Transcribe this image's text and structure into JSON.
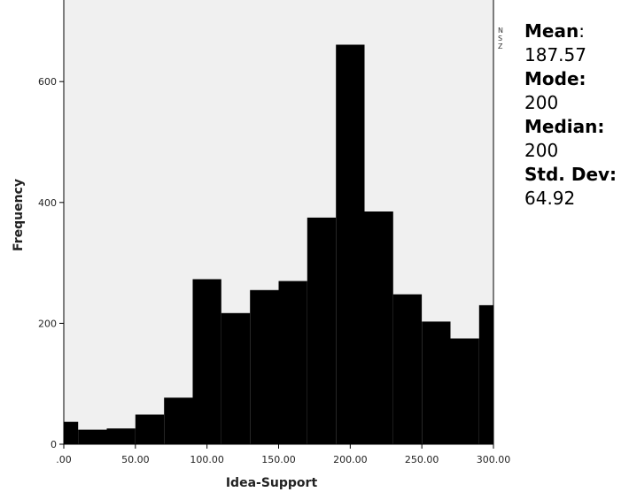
{
  "chart_data": {
    "type": "bar",
    "subtype": "histogram",
    "xlabel": "Idea-Support",
    "ylabel": "Frequency",
    "xlim": [
      0,
      300
    ],
    "ylim": [
      0,
      735
    ],
    "x_ticks": [
      0,
      50,
      100,
      150,
      200,
      250,
      300
    ],
    "x_tick_labels": [
      ".00",
      "50.00",
      "100.00",
      "150.00",
      "200.00",
      "250.00",
      "300.00"
    ],
    "y_ticks": [
      0,
      200,
      400,
      600
    ],
    "y_tick_labels": [
      "0",
      "200",
      "400",
      "600"
    ],
    "bin_width": 20,
    "bins": [
      {
        "start": 0,
        "end": 10,
        "value": 37
      },
      {
        "start": 10,
        "end": 30,
        "value": 24
      },
      {
        "start": 30,
        "end": 50,
        "value": 26
      },
      {
        "start": 50,
        "end": 70,
        "value": 49
      },
      {
        "start": 70,
        "end": 90,
        "value": 77
      },
      {
        "start": 90,
        "end": 110,
        "value": 273
      },
      {
        "start": 110,
        "end": 130,
        "value": 217
      },
      {
        "start": 130,
        "end": 150,
        "value": 255
      },
      {
        "start": 150,
        "end": 170,
        "value": 270
      },
      {
        "start": 170,
        "end": 190,
        "value": 375
      },
      {
        "start": 190,
        "end": 210,
        "value": 661
      },
      {
        "start": 210,
        "end": 230,
        "value": 385
      },
      {
        "start": 230,
        "end": 250,
        "value": 248
      },
      {
        "start": 250,
        "end": 270,
        "value": 203
      },
      {
        "start": 270,
        "end": 290,
        "value": 175
      },
      {
        "start": 290,
        "end": 300,
        "value": 230
      }
    ],
    "bar_color": "#000000",
    "plot_background": "#f0f0f0",
    "grid": false,
    "legend": "none"
  },
  "stats": {
    "mean_label": "Mean",
    "mean_colon": ":",
    "mean_value": "187.57",
    "mode_label": "Mode:",
    "mode_value": "200",
    "median_label": "Median:",
    "median_value": "200",
    "std_label": "Std. Dev:",
    "std_value": "64.92"
  },
  "clipped_text": "N S Z"
}
